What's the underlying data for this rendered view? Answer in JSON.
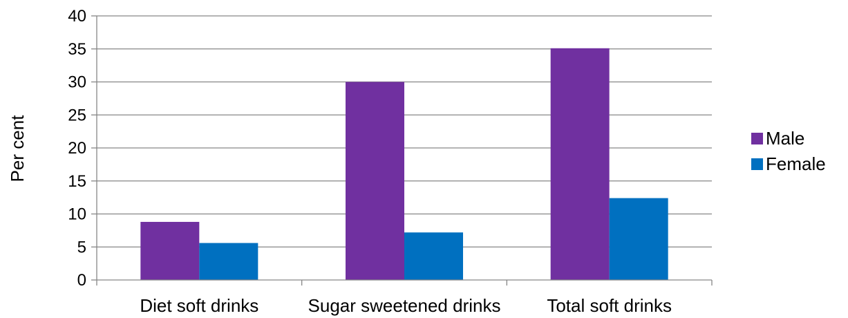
{
  "chart_data": {
    "type": "bar",
    "categories": [
      "Diet soft drinks",
      "Sugar sweetened drinks",
      "Total soft drinks"
    ],
    "series": [
      {
        "name": "Male",
        "values": [
          8.8,
          30.0,
          35.1
        ],
        "color": "#7030A0"
      },
      {
        "name": "Female",
        "values": [
          5.6,
          7.2,
          12.4
        ],
        "color": "#0070C0"
      }
    ],
    "ylabel": "Per cent",
    "ylim": [
      0,
      40
    ],
    "yticks": [
      0,
      5,
      10,
      15,
      20,
      25,
      30,
      35,
      40
    ],
    "grid": true,
    "legend": "right"
  }
}
